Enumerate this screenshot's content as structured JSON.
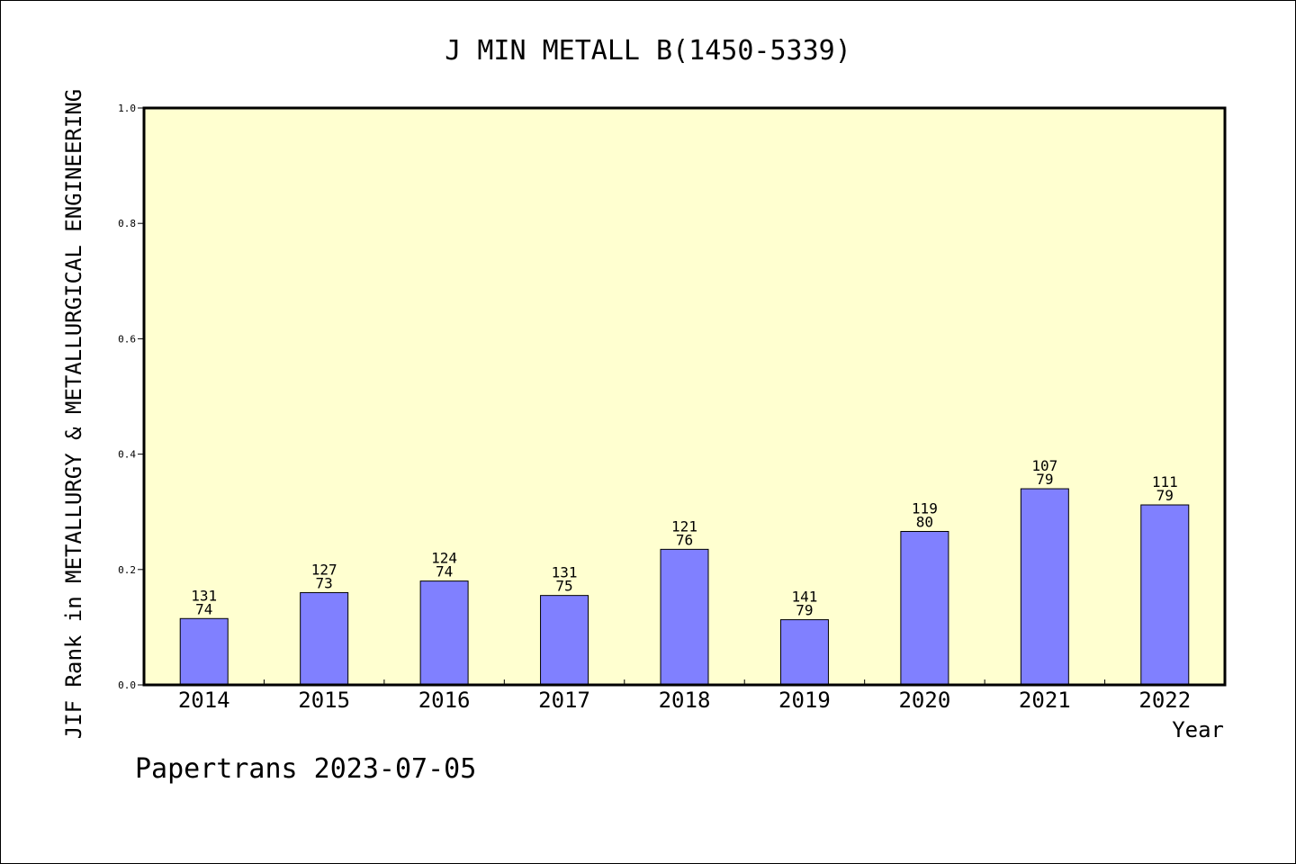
{
  "chart_data": {
    "type": "bar",
    "title": "J MIN METALL B(1450-5339)",
    "xlabel": "Year",
    "ylabel": "JIF Rank in METALLURGY & METALLURGICAL ENGINEERING",
    "ylim": [
      0,
      1.0
    ],
    "yticks": [
      "0.0",
      "0.2",
      "0.4",
      "0.6",
      "0.8",
      "1.0"
    ],
    "categories": [
      "2014",
      "2015",
      "2016",
      "2017",
      "2018",
      "2019",
      "2020",
      "2021",
      "2022"
    ],
    "values": [
      0.115,
      0.16,
      0.18,
      0.155,
      0.235,
      0.113,
      0.266,
      0.34,
      0.312
    ],
    "labels_top": [
      "131",
      "127",
      "124",
      "131",
      "121",
      "141",
      "119",
      "107",
      "111"
    ],
    "labels_bottom": [
      "74",
      "73",
      "74",
      "75",
      "76",
      "79",
      "80",
      "79",
      "79"
    ],
    "grid": false,
    "colors": {
      "plot_background": "#ffffd0",
      "bar_fill": "#8080ff",
      "bar_stroke": "#000000"
    }
  },
  "footer": {
    "text": "Papertrans 2023-07-05"
  }
}
